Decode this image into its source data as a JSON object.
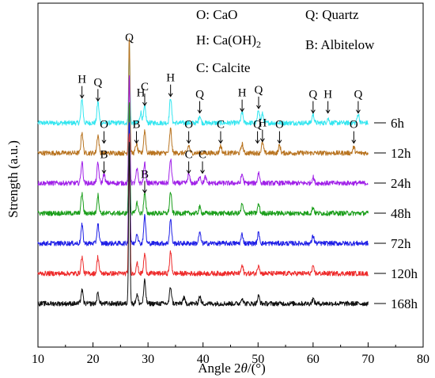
{
  "chart_data": {
    "type": "line",
    "title": "",
    "xlabel": "Angle 2θ/(°)",
    "ylabel": "Strength (a.u.)",
    "xlim": [
      10,
      80
    ],
    "xticks": [
      10,
      20,
      30,
      40,
      50,
      60,
      70,
      80
    ],
    "yticks": "none",
    "grid": false,
    "legend": [
      {
        "symbol": "O",
        "text": "O: CaO"
      },
      {
        "symbol": "Q",
        "text": "Q: Quartz"
      },
      {
        "symbol": "H",
        "text": "H: Ca(OH)2"
      },
      {
        "symbol": "B",
        "text": "B: Albitelow"
      },
      {
        "symbol": "C",
        "text": "C: Calcite"
      }
    ],
    "legend_placement": "top",
    "x_range_measured": [
      10,
      70
    ],
    "series": [
      {
        "name": "6h",
        "color": "#33e6f0",
        "baseline_level": 6,
        "peaks": [
          {
            "x": 18.0,
            "h": 1.6
          },
          {
            "x": 20.9,
            "h": 1.4
          },
          {
            "x": 26.6,
            "h": 5.2
          },
          {
            "x": 28.7,
            "h": 0.7
          },
          {
            "x": 29.4,
            "h": 1.1
          },
          {
            "x": 34.1,
            "h": 1.7
          },
          {
            "x": 39.4,
            "h": 0.5
          },
          {
            "x": 47.1,
            "h": 0.7
          },
          {
            "x": 50.1,
            "h": 0.9
          },
          {
            "x": 50.8,
            "h": 0.6
          },
          {
            "x": 60.0,
            "h": 0.6
          },
          {
            "x": 62.7,
            "h": 0.3
          },
          {
            "x": 68.2,
            "h": 0.6
          }
        ]
      },
      {
        "name": "12h",
        "color": "#b8731f",
        "baseline_level": 5,
        "peaks": [
          {
            "x": 18.0,
            "h": 1.4
          },
          {
            "x": 20.9,
            "h": 1.2
          },
          {
            "x": 26.6,
            "h": 7.8
          },
          {
            "x": 27.9,
            "h": 0.6
          },
          {
            "x": 29.4,
            "h": 1.5
          },
          {
            "x": 34.1,
            "h": 1.6
          },
          {
            "x": 37.4,
            "h": 0.5
          },
          {
            "x": 43.2,
            "h": 0.5
          },
          {
            "x": 47.1,
            "h": 0.6
          },
          {
            "x": 50.8,
            "h": 0.7
          },
          {
            "x": 53.9,
            "h": 0.5
          },
          {
            "x": 67.4,
            "h": 0.4
          }
        ]
      },
      {
        "name": "24h",
        "color": "#a020e8",
        "baseline_level": 4,
        "peaks": [
          {
            "x": 18.0,
            "h": 1.4
          },
          {
            "x": 20.9,
            "h": 1.3
          },
          {
            "x": 22.0,
            "h": 0.6
          },
          {
            "x": 26.6,
            "h": 7.2
          },
          {
            "x": 28.0,
            "h": 0.9
          },
          {
            "x": 29.4,
            "h": 1.3
          },
          {
            "x": 34.1,
            "h": 1.6
          },
          {
            "x": 37.4,
            "h": 0.6
          },
          {
            "x": 39.4,
            "h": 0.5
          },
          {
            "x": 40.4,
            "h": 0.4
          },
          {
            "x": 47.1,
            "h": 0.6
          },
          {
            "x": 50.1,
            "h": 0.7
          },
          {
            "x": 60.0,
            "h": 0.4
          }
        ]
      },
      {
        "name": "48h",
        "color": "#1a9e1a",
        "baseline_level": 3,
        "peaks": [
          {
            "x": 18.0,
            "h": 1.3
          },
          {
            "x": 20.9,
            "h": 1.2
          },
          {
            "x": 26.6,
            "h": 7.5
          },
          {
            "x": 28.0,
            "h": 0.7
          },
          {
            "x": 29.4,
            "h": 1.3
          },
          {
            "x": 34.1,
            "h": 1.4
          },
          {
            "x": 39.4,
            "h": 0.4
          },
          {
            "x": 47.1,
            "h": 0.6
          },
          {
            "x": 50.1,
            "h": 0.6
          },
          {
            "x": 60.0,
            "h": 0.4
          }
        ]
      },
      {
        "name": "72h",
        "color": "#1f1fe6",
        "baseline_level": 2,
        "peaks": [
          {
            "x": 18.0,
            "h": 1.2
          },
          {
            "x": 20.9,
            "h": 1.3
          },
          {
            "x": 26.6,
            "h": 8.2
          },
          {
            "x": 28.0,
            "h": 0.7
          },
          {
            "x": 29.4,
            "h": 1.8
          },
          {
            "x": 34.1,
            "h": 1.6
          },
          {
            "x": 39.4,
            "h": 0.7
          },
          {
            "x": 47.1,
            "h": 0.6
          },
          {
            "x": 50.1,
            "h": 0.7
          },
          {
            "x": 60.0,
            "h": 0.5
          }
        ]
      },
      {
        "name": "120h",
        "color": "#ee2a2a",
        "baseline_level": 1,
        "peaks": [
          {
            "x": 18.0,
            "h": 1.1
          },
          {
            "x": 20.9,
            "h": 1.1
          },
          {
            "x": 26.6,
            "h": 9.5
          },
          {
            "x": 28.0,
            "h": 0.7
          },
          {
            "x": 29.4,
            "h": 1.3
          },
          {
            "x": 34.1,
            "h": 1.4
          },
          {
            "x": 47.1,
            "h": 0.5
          },
          {
            "x": 50.1,
            "h": 0.6
          },
          {
            "x": 60.0,
            "h": 0.4
          }
        ]
      },
      {
        "name": "168h",
        "color": "#111111",
        "baseline_level": 0,
        "peaks": [
          {
            "x": 18.0,
            "h": 0.9
          },
          {
            "x": 20.9,
            "h": 0.7
          },
          {
            "x": 26.6,
            "h": 11.0
          },
          {
            "x": 28.0,
            "h": 0.6
          },
          {
            "x": 29.4,
            "h": 1.5
          },
          {
            "x": 34.1,
            "h": 1.1
          },
          {
            "x": 36.5,
            "h": 0.4
          },
          {
            "x": 39.4,
            "h": 0.5
          },
          {
            "x": 47.1,
            "h": 0.4
          },
          {
            "x": 50.1,
            "h": 0.5
          },
          {
            "x": 60.0,
            "h": 0.3
          }
        ]
      }
    ],
    "annotations": [
      {
        "text": "H",
        "x": 18.0,
        "series": "6h",
        "arrow": true
      },
      {
        "text": "Q",
        "x": 20.9,
        "series": "6h",
        "arrow": true
      },
      {
        "text": "Q",
        "x": 26.6,
        "series": "6h",
        "arrow": false,
        "top": true
      },
      {
        "text": "H",
        "x": 28.7,
        "series": "6h",
        "arrow": false
      },
      {
        "text": "C",
        "x": 29.4,
        "series": "6h",
        "arrow": true
      },
      {
        "text": "H",
        "x": 34.1,
        "series": "6h",
        "arrow": true
      },
      {
        "text": "Q",
        "x": 39.4,
        "series": "6h",
        "arrow": true
      },
      {
        "text": "H",
        "x": 47.1,
        "series": "6h",
        "arrow": true
      },
      {
        "text": "Q",
        "x": 50.1,
        "series": "6h",
        "arrow": true
      },
      {
        "text": "Q",
        "x": 60.0,
        "series": "6h",
        "arrow": true
      },
      {
        "text": "H",
        "x": 62.7,
        "series": "6h",
        "arrow": true
      },
      {
        "text": "Q",
        "x": 68.2,
        "series": "6h",
        "arrow": true
      },
      {
        "text": "O",
        "x": 22.0,
        "series": "12h",
        "arrow": true
      },
      {
        "text": "B",
        "x": 27.9,
        "series": "12h",
        "arrow": true
      },
      {
        "text": "O",
        "x": 37.4,
        "series": "12h",
        "arrow": true
      },
      {
        "text": "C",
        "x": 43.2,
        "series": "12h",
        "arrow": true
      },
      {
        "text": "Q",
        "x": 49.9,
        "series": "12h",
        "arrow": true
      },
      {
        "text": "H",
        "x": 50.8,
        "series": "12h",
        "arrow": true
      },
      {
        "text": "O",
        "x": 53.9,
        "series": "12h",
        "arrow": true
      },
      {
        "text": "O",
        "x": 67.4,
        "series": "12h",
        "arrow": true
      },
      {
        "text": "B",
        "x": 22.0,
        "series": "24h",
        "arrow": true
      },
      {
        "text": "C",
        "x": 37.4,
        "series": "24h",
        "arrow": true
      },
      {
        "text": "C",
        "x": 39.9,
        "series": "24h",
        "arrow": true
      },
      {
        "text": "B",
        "x": 29.4,
        "series": "48h",
        "arrow": true
      }
    ]
  }
}
